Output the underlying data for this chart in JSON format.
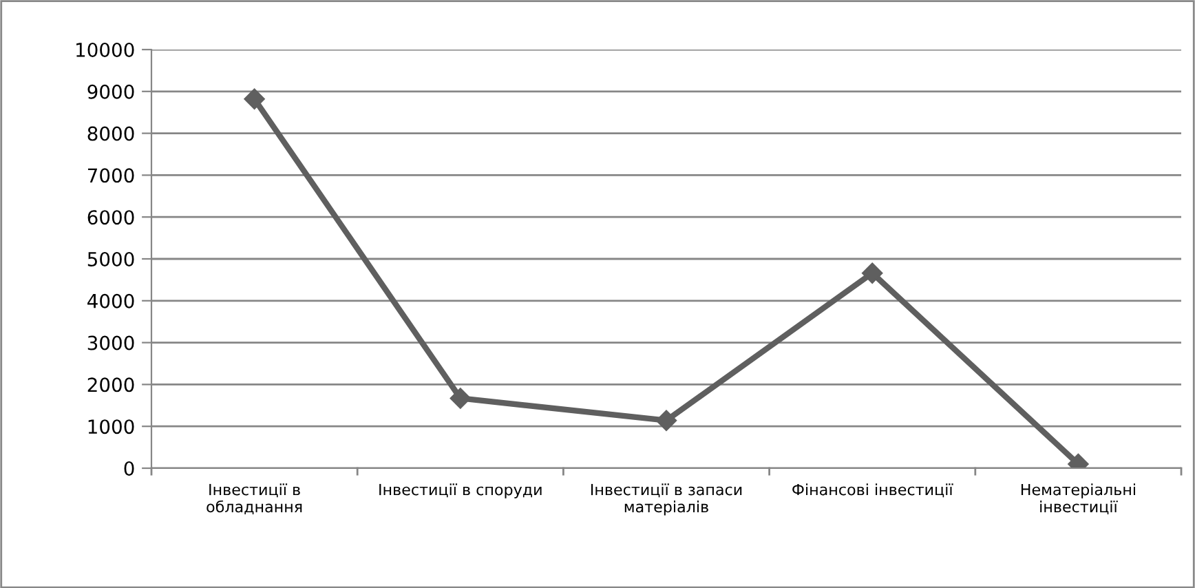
{
  "chart_data": {
    "type": "line",
    "categories": [
      "Інвестиції в обладнання",
      "Інвестиції в споруди",
      "Інвестиції в запаси матеріалів",
      "Фінансові інвестиції",
      "Нематеріальні інвестиції"
    ],
    "series": [
      {
        "color": "#5f5f5f",
        "values": [
          8820,
          1670,
          1140,
          4660,
          100
        ]
      }
    ],
    "ylim": [
      0,
      10000
    ],
    "yticks": [
      0,
      1000,
      2000,
      3000,
      4000,
      5000,
      6000,
      7000,
      8000,
      9000,
      10000
    ],
    "grid": "y",
    "marker": "diamond",
    "line_style": "solid"
  }
}
